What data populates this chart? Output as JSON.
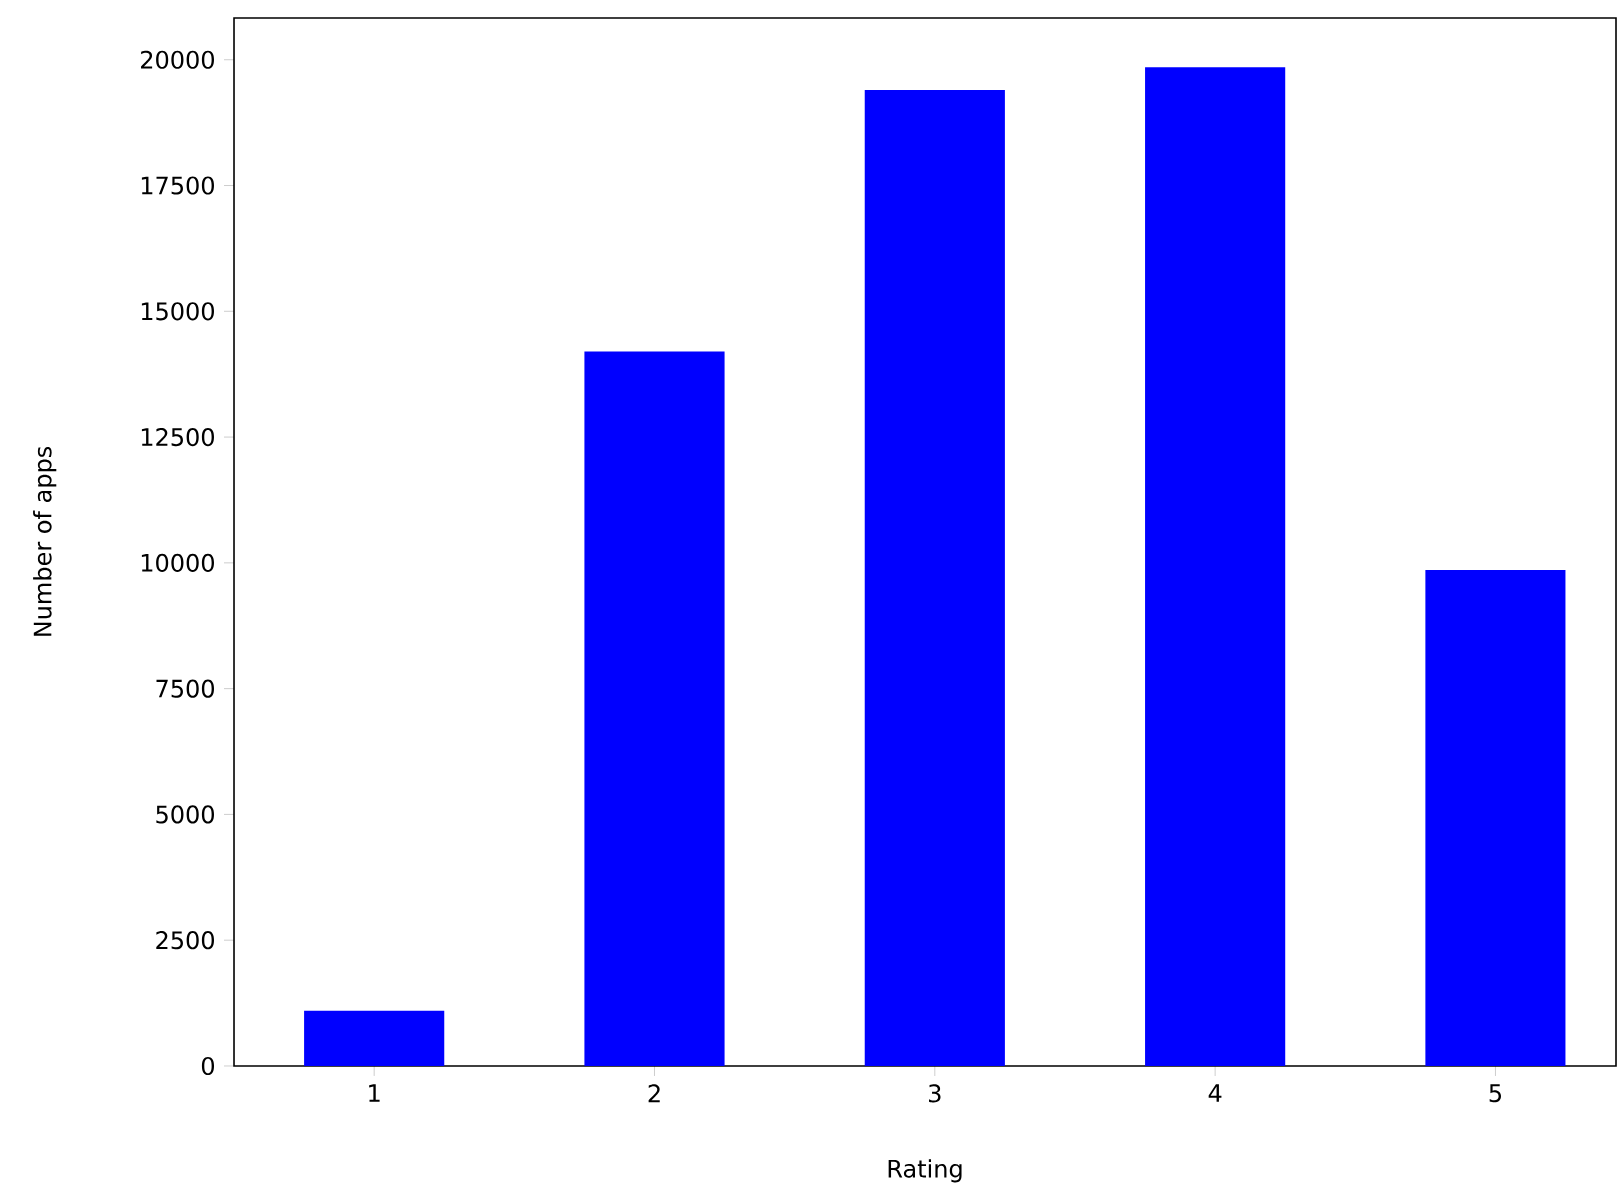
{
  "chart_data": {
    "type": "bar",
    "xlabel": "Rating",
    "ylabel": "Number of apps",
    "categories": [
      "1",
      "2",
      "3",
      "4",
      "5"
    ],
    "values": [
      1100,
      14200,
      19400,
      19850,
      9860
    ],
    "color": "#0000ff",
    "ylim": [
      0,
      20830
    ],
    "yticks": [
      0,
      2500,
      5000,
      7500,
      10000,
      12500,
      15000,
      17500,
      20000
    ],
    "grid": false
  }
}
